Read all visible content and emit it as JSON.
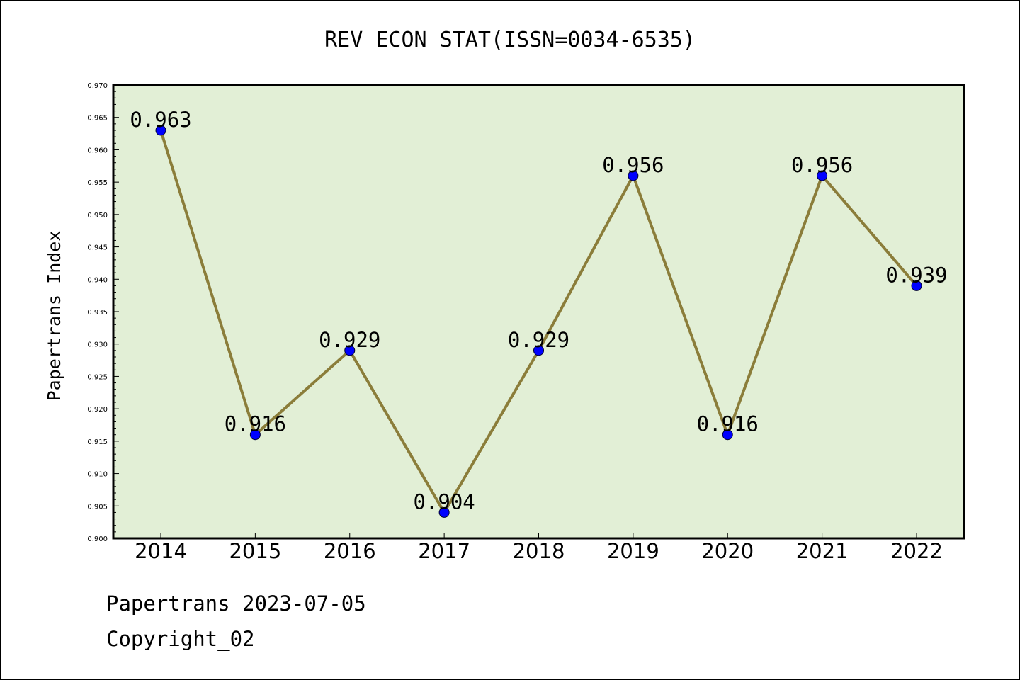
{
  "chart_data": {
    "type": "line",
    "title": "REV ECON STAT(ISSN=0034-6535)",
    "xlabel": "",
    "ylabel": "Papertrans Index",
    "categories": [
      "2014",
      "2015",
      "2016",
      "2017",
      "2018",
      "2019",
      "2020",
      "2021",
      "2022"
    ],
    "values": [
      0.963,
      0.916,
      0.929,
      0.904,
      0.929,
      0.956,
      0.916,
      0.956,
      0.939
    ],
    "data_labels": [
      "0.963",
      "0.916",
      "0.929",
      "0.904",
      "0.929",
      "0.956",
      "0.916",
      "0.956",
      "0.939"
    ],
    "ylim": [
      0.9,
      0.97
    ],
    "yticks": [
      "0.900",
      "0.905",
      "0.910",
      "0.915",
      "0.920",
      "0.925",
      "0.930",
      "0.935",
      "0.940",
      "0.945",
      "0.950",
      "0.955",
      "0.960",
      "0.965",
      "0.970"
    ],
    "grid": false,
    "plot_background": "#e2efd6",
    "line_color": "#8b7d3a",
    "marker_color": "#0000ff"
  },
  "footer": {
    "line1": "Papertrans 2023-07-05",
    "line2": "Copyright_02"
  }
}
